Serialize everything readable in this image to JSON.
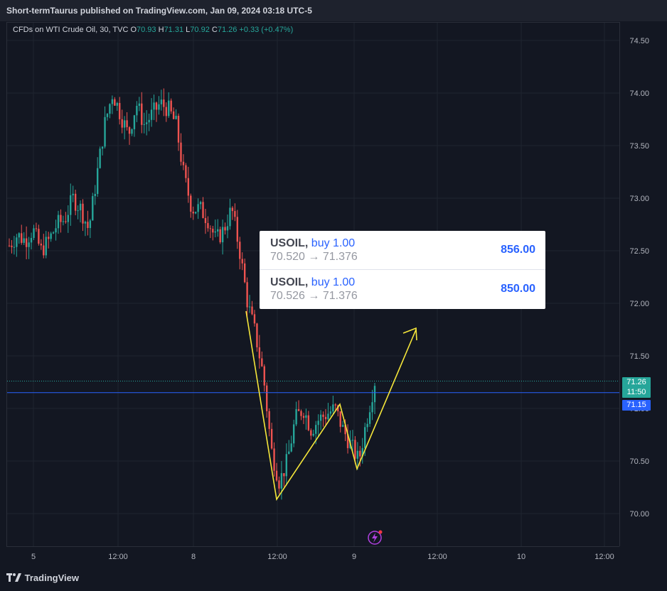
{
  "header": {
    "published": "Short-termTaurus published on TradingView.com, Jan 09, 2024 03:18 UTC-5"
  },
  "legend": {
    "symbol": "CFDs on WTI Crude Oil, 30, TVC",
    "o_label": "O",
    "o": "70.93",
    "h_label": "H",
    "h": "71.31",
    "l_label": "L",
    "l": "70.92",
    "c_label": "C",
    "c": "71.26",
    "change": "+0.33 (+0.47%)"
  },
  "trades": [
    {
      "symbol": "USOIL,",
      "side": "buy 1.00",
      "range": "70.520 → 71.376",
      "pnl": "856.00"
    },
    {
      "symbol": "USOIL,",
      "side": "buy 1.00",
      "range": "70.526 → 71.376",
      "pnl": "850.00"
    }
  ],
  "price_tags": {
    "last": "71.26",
    "countdown": "11:50",
    "line": "71.15"
  },
  "footer": {
    "brand": "TradingView"
  },
  "colors": {
    "up": "#26a69a",
    "down": "#ef5350",
    "line": "#2962ff",
    "drawing": "#f5e63a"
  },
  "chart_data": {
    "type": "candlestick",
    "title": "CFDs on WTI Crude Oil, 30, TVC",
    "ylim": [
      69.9,
      74.6
    ],
    "yticks": [
      "74.50",
      "74.00",
      "73.50",
      "73.00",
      "72.50",
      "72.00",
      "71.50",
      "71.00",
      "70.50",
      "70.00"
    ],
    "yticks_values": [
      74.5,
      74.0,
      73.5,
      73.0,
      72.5,
      72.0,
      71.5,
      71.0,
      70.5,
      70.0
    ],
    "xticks": [
      "5",
      "12:00",
      "8",
      "12:00",
      "9",
      "12:00",
      "10",
      "12:00"
    ],
    "close_path": [
      72.55,
      72.65,
      72.6,
      72.7,
      72.5,
      72.6,
      72.75,
      72.8,
      73.0,
      72.9,
      72.7,
      73.2,
      73.7,
      74.0,
      73.8,
      73.6,
      73.9,
      73.7,
      73.8,
      73.9,
      73.85,
      73.7,
      73.2,
      72.9,
      72.9,
      72.8,
      72.6,
      72.7,
      72.9,
      72.5,
      72.0,
      71.7,
      71.3,
      70.6,
      70.3,
      70.5,
      70.9,
      71.0,
      70.8,
      70.9,
      70.95,
      71.0,
      70.8,
      70.65,
      70.5,
      70.9,
      71.26
    ],
    "horizontal_line": 71.15,
    "last_price": 71.26
  }
}
